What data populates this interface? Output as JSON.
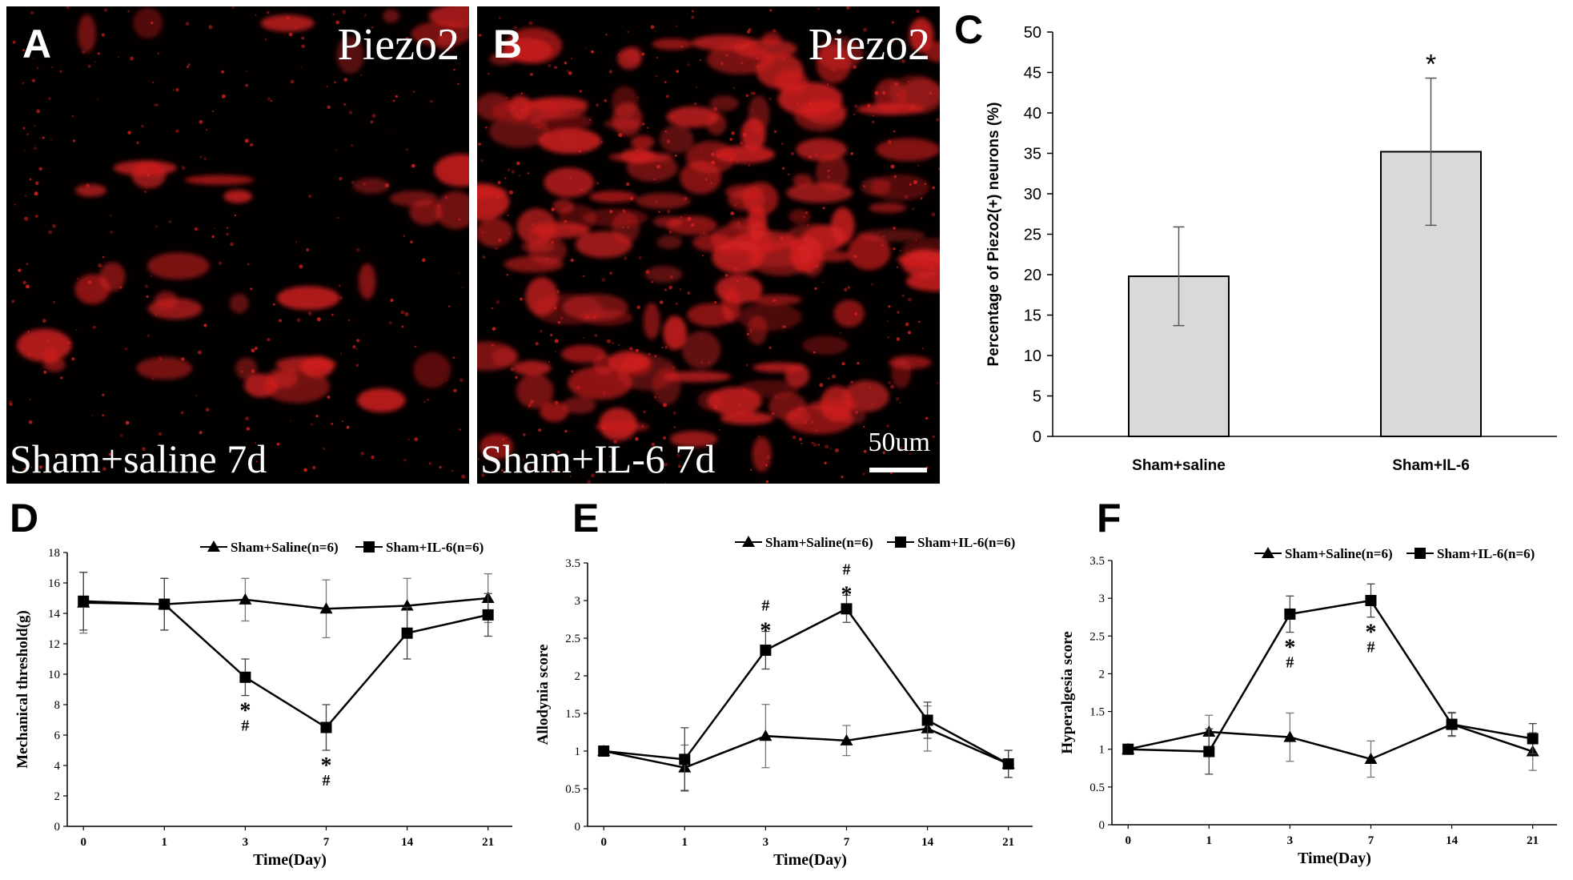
{
  "panels": {
    "A": {
      "letter": "A",
      "marker": "Piezo2",
      "condition": "Sham+saline 7d"
    },
    "B": {
      "letter": "B",
      "marker": "Piezo2",
      "condition": "Sham+IL-6 7d",
      "scale_label": "50um"
    }
  },
  "colors": {
    "fluorescence": "#d42020",
    "background": "#030000",
    "bar_fill": "#d9d9d9",
    "line": "#000000"
  },
  "chart_data": [
    {
      "panel": "C",
      "type": "bar",
      "categories": [
        "Sham+saline",
        "Sham+IL-6"
      ],
      "values": [
        19.8,
        35.2
      ],
      "errors": [
        6.1,
        9.1
      ],
      "annotations": [
        "",
        "*"
      ],
      "ylabel": "Percentage of Piezo2(+) neurons (%)",
      "xlabel": "",
      "ylim": [
        0,
        50
      ],
      "yticks": [
        0,
        5,
        10,
        15,
        20,
        25,
        30,
        35,
        40,
        45,
        50
      ],
      "grid": false
    },
    {
      "panel": "D",
      "type": "line",
      "x": [
        "0",
        "1",
        "3",
        "7",
        "14",
        "21"
      ],
      "xlabel": "Time(Day)",
      "ylabel": "Mechanical threshold(g)",
      "ylim": [
        0,
        18
      ],
      "yticks": [
        0,
        2,
        4,
        6,
        8,
        10,
        12,
        14,
        16,
        18
      ],
      "legend_position": "top-right",
      "series": [
        {
          "name": "Sham+Saline(n=6)",
          "marker": "triangle",
          "values": [
            14.7,
            14.6,
            14.9,
            14.3,
            14.5,
            15.0
          ],
          "errors": [
            2.0,
            1.7,
            1.4,
            1.9,
            1.8,
            1.6
          ]
        },
        {
          "name": "Sham+IL-6(n=6)",
          "marker": "square",
          "values": [
            14.8,
            14.6,
            9.8,
            6.5,
            12.7,
            13.9
          ],
          "errors": [
            1.9,
            1.7,
            1.2,
            1.5,
            1.7,
            1.4
          ]
        }
      ],
      "annotations": [
        {
          "x": "3",
          "lines": [
            "*",
            "#"
          ],
          "position": "below"
        },
        {
          "x": "7",
          "lines": [
            "*",
            "#"
          ],
          "position": "below"
        }
      ]
    },
    {
      "panel": "E",
      "type": "line",
      "x": [
        "0",
        "1",
        "3",
        "7",
        "14",
        "21"
      ],
      "xlabel": "Time(Day)",
      "ylabel": "Allodynia score",
      "ylim": [
        0,
        3.5
      ],
      "yticks": [
        0,
        0.5,
        1,
        1.5,
        2,
        2.5,
        3,
        3.5
      ],
      "legend_position": "top-right",
      "series": [
        {
          "name": "Sham+Saline(n=6)",
          "marker": "triangle",
          "values": [
            1.0,
            0.78,
            1.2,
            1.14,
            1.3,
            0.83
          ],
          "errors": [
            0,
            0.3,
            0.42,
            0.2,
            0.3,
            0.18
          ]
        },
        {
          "name": "Sham+IL-6(n=6)",
          "marker": "square",
          "values": [
            1.0,
            0.89,
            2.34,
            2.89,
            1.41,
            0.83
          ],
          "errors": [
            0,
            0.42,
            0.25,
            0.18,
            0.24,
            0.18
          ]
        }
      ],
      "annotations": [
        {
          "x": "3",
          "lines": [
            "#",
            "*"
          ],
          "position": "above"
        },
        {
          "x": "7",
          "lines": [
            "#",
            "*"
          ],
          "position": "above"
        }
      ]
    },
    {
      "panel": "F",
      "type": "line",
      "x": [
        "0",
        "1",
        "3",
        "7",
        "14",
        "21"
      ],
      "xlabel": "Time(Day)",
      "ylabel": "Hyperalgesia score",
      "ylim": [
        0,
        3.5
      ],
      "yticks": [
        0,
        0.5,
        1,
        1.5,
        2,
        2.5,
        3,
        3.5
      ],
      "legend_position": "top-right",
      "series": [
        {
          "name": "Sham+Saline(n=6)",
          "marker": "triangle",
          "values": [
            1.0,
            1.23,
            1.16,
            0.87,
            1.33,
            0.97
          ],
          "errors": [
            0,
            0.22,
            0.32,
            0.24,
            0.16,
            0.25
          ]
        },
        {
          "name": "Sham+IL-6(n=6)",
          "marker": "square",
          "values": [
            1.0,
            0.97,
            2.79,
            2.97,
            1.33,
            1.14
          ],
          "errors": [
            0,
            0.3,
            0.24,
            0.22,
            0.15,
            0.2
          ]
        }
      ],
      "annotations": [
        {
          "x": "3",
          "lines": [
            "*",
            "#"
          ],
          "position": "below"
        },
        {
          "x": "7",
          "lines": [
            "*",
            "#"
          ],
          "position": "below"
        }
      ]
    }
  ]
}
